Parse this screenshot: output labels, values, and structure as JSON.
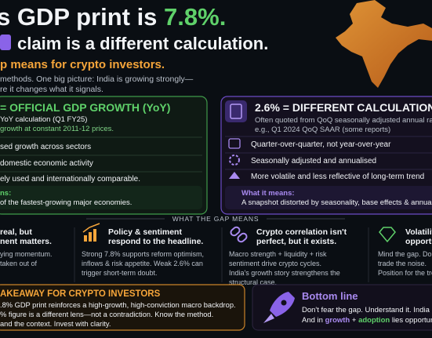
{
  "header": {
    "title_part": "s GDP print is ",
    "title_highlight": "7.8%.",
    "subtitle": "claim is a different calculation.",
    "tagline": "p means for crypto investors.",
    "intro": [
      "methods. One big picture: India is growing strongly—",
      "re it changes what it signals."
    ]
  },
  "official_card": {
    "heading": "= OFFICIAL GDP GROWTH (YoY)",
    "description": [
      "YoY calculation (Q1 FY25)",
      "growth at constant 2011-12 prices."
    ],
    "points": [
      "sed growth across sectors",
      "domestic economic activity",
      "ely used and internationally comparable."
    ],
    "meaning_label": "ns:",
    "meaning": "of the fastest-growing major economies."
  },
  "different_card": {
    "heading": "2.6% = DIFFERENT CALCULATION",
    "description": [
      "Often quoted from QoQ seasonally adjusted annual rate (S",
      "e.g., Q1 2024 QoQ SAAR (some reports)"
    ],
    "points": [
      "Quarter-over-quarter, not year-over-year",
      "Seasonally adjusted and annualised",
      "More volatile and less reflective of long-term trend"
    ],
    "meaning_label": "What it means:",
    "meaning": "A snapshot distorted by seasonality, base effects & annualisati"
  },
  "gap_section": {
    "title": "WHAT THE GAP MEANS",
    "items": [
      {
        "heading": [
          "real, but",
          "nent matters."
        ],
        "body": [
          "ying momentum.",
          "taken out of"
        ]
      },
      {
        "heading": [
          "Policy & sentiment",
          "respond to the headline."
        ],
        "body": [
          "Strong 7.8% supports reform optimism,",
          "inflows & risk appetite. Weak 2.6% can",
          "trigger short-term doubt."
        ]
      },
      {
        "heading": [
          "Crypto correlation isn't",
          "perfect, but it exists."
        ],
        "body": [
          "Macro strength + liquidity + risk",
          "sentiment drive crypto cycles.",
          "India's growth story strengthens the",
          "structural case."
        ]
      },
      {
        "heading": [
          "Volatility",
          "opportu"
        ],
        "body": [
          "Mind the gap. Don't",
          "trade the noise.",
          "Position for the tre"
        ]
      }
    ]
  },
  "takeaway": {
    "heading": "AKEAWAY FOR CRYPTO INVESTORS",
    "lines": [
      ".8% GDP print reinforces a high-growth, high-conviction macro backdrop.",
      "% figure is a different lens—not a contradiction. Know the method.",
      "and the context. Invest with clarity."
    ]
  },
  "bottom_line": {
    "heading": "Bottom line",
    "line1": "Don't fear the gap. Understand it. India is gr",
    "line2": [
      "And in ",
      "growth",
      " + ",
      "adoption",
      " lies opportunity. In"
    ]
  }
}
